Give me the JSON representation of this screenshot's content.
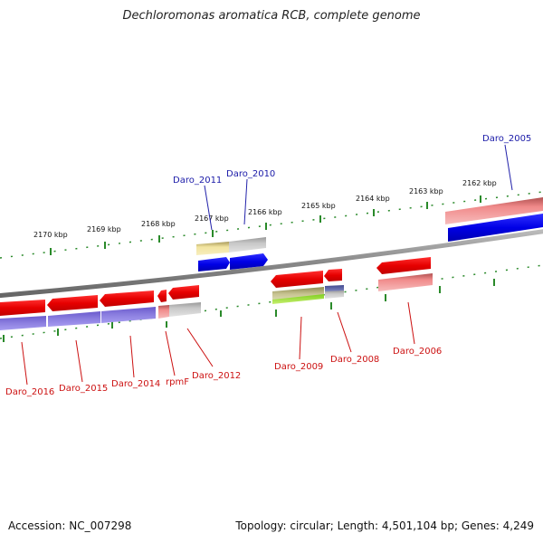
{
  "title": "Dechloromonas aromatica RCB, complete genome",
  "accession": "Accession: NC_007298",
  "stats": "Topology: circular; Length: 4,501,104 bp; Genes: 4,249",
  "kbp_labels": [
    "2170 kbp",
    "2169 kbp",
    "2168 kbp",
    "2167 kbp",
    "2166 kbp",
    "2165 kbp",
    "2164 kbp",
    "2163 kbp",
    "2162 kbp"
  ],
  "top_genes": [
    "Daro_2011",
    "Daro_2010",
    "Daro_2005"
  ],
  "bottom_genes": [
    "Daro_2016",
    "Daro_2015",
    "Daro_2014",
    "rpmF",
    "Daro_2012",
    "Daro_2009",
    "Daro_2008",
    "Daro_2006"
  ],
  "colors": {
    "gene_forward": "#0000e6",
    "gene_reverse": "#e60000",
    "label_blue": "#1a1aa8",
    "label_red": "#cc1111",
    "ticks": "#2a8a2a"
  }
}
